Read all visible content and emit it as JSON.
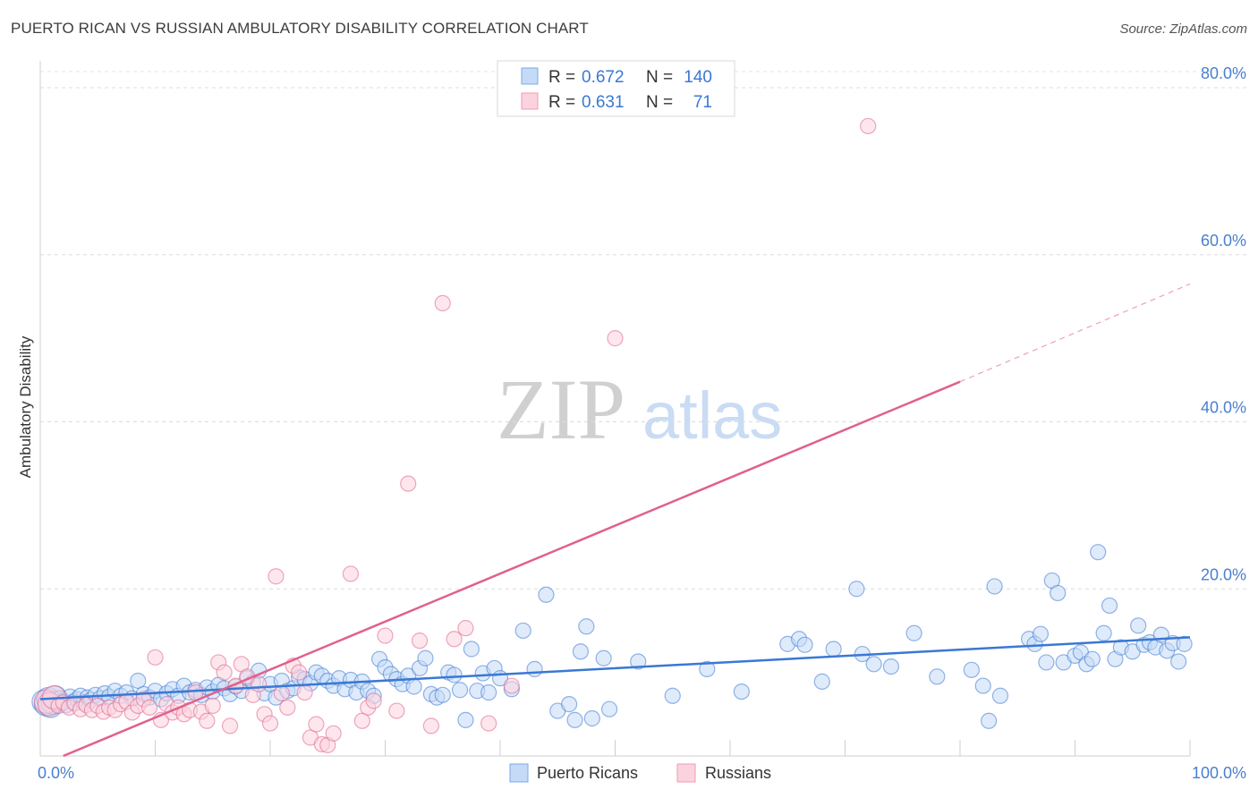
{
  "title": "PUERTO RICAN VS RUSSIAN AMBULATORY DISABILITY CORRELATION CHART",
  "source": "Source: ZipAtlas.com",
  "watermark": {
    "zip": "ZIP",
    "atlas": "atlas"
  },
  "legend": {
    "rows": [
      {
        "r_label": "R =",
        "r_value": "0.672",
        "n_label": "N =",
        "n_value": "140",
        "color": "#7aaae8",
        "fill": "#c5daf6"
      },
      {
        "r_label": "R =",
        "r_value": "0.631",
        "n_label": "N =",
        "n_value": "71",
        "color": "#f09ab5",
        "fill": "#fbd3df"
      }
    ]
  },
  "bottom_legend": [
    {
      "label": "Puerto Ricans",
      "color": "#7aaae8",
      "fill": "#c5daf6"
    },
    {
      "label": "Russians",
      "color": "#f09ab5",
      "fill": "#fbd3df"
    }
  ],
  "chart_data": {
    "type": "scatter",
    "xlabel": "",
    "ylabel": "Ambulatory Disability",
    "xlim": [
      0,
      100
    ],
    "ylim": [
      0,
      80
    ],
    "x_tick_labels": [
      {
        "value": 0,
        "label": "0.0%"
      },
      {
        "value": 100,
        "label": "100.0%"
      }
    ],
    "y_ticks": [
      {
        "value": 20,
        "label": "20.0%"
      },
      {
        "value": 40,
        "label": "40.0%"
      },
      {
        "value": 60,
        "label": "60.0%"
      },
      {
        "value": 80,
        "label": "80.0%"
      }
    ],
    "grid": "horizontal dashed",
    "legend_position": "top-center",
    "series": [
      {
        "name": "Puerto Ricans",
        "color": "#3a78d4",
        "fill": "#c5daf6",
        "trend": {
          "x": [
            0,
            100
          ],
          "y": [
            6.8,
            14.2
          ],
          "dash_from": null
        },
        "points": [
          [
            0.3,
            6.5
          ],
          [
            0.5,
            6.2
          ],
          [
            0.7,
            6.8
          ],
          [
            0.9,
            6.0
          ],
          [
            1.1,
            6.4
          ],
          [
            1.3,
            7.0
          ],
          [
            1.5,
            6.3
          ],
          [
            1.7,
            6.9
          ],
          [
            2.0,
            6.6
          ],
          [
            2.3,
            6.1
          ],
          [
            2.6,
            7.1
          ],
          [
            2.9,
            6.5
          ],
          [
            3.2,
            6.8
          ],
          [
            3.5,
            7.2
          ],
          [
            3.8,
            6.4
          ],
          [
            4.1,
            7.0
          ],
          [
            4.4,
            6.7
          ],
          [
            4.8,
            7.3
          ],
          [
            5.2,
            6.9
          ],
          [
            5.6,
            7.5
          ],
          [
            6.0,
            7.1
          ],
          [
            6.5,
            7.8
          ],
          [
            7.0,
            7.2
          ],
          [
            7.5,
            7.6
          ],
          [
            8.0,
            6.9
          ],
          [
            8.5,
            9.0
          ],
          [
            9.0,
            7.4
          ],
          [
            9.5,
            7.0
          ],
          [
            10.0,
            7.8
          ],
          [
            10.5,
            6.8
          ],
          [
            11.0,
            7.5
          ],
          [
            11.5,
            8.0
          ],
          [
            12.0,
            7.2
          ],
          [
            12.5,
            8.4
          ],
          [
            13.0,
            7.6
          ],
          [
            13.5,
            7.9
          ],
          [
            14.0,
            7.3
          ],
          [
            14.5,
            8.2
          ],
          [
            15.0,
            7.7
          ],
          [
            15.5,
            8.5
          ],
          [
            16.0,
            8.1
          ],
          [
            16.5,
            7.4
          ],
          [
            17.0,
            8.3
          ],
          [
            17.5,
            7.8
          ],
          [
            18.0,
            9.3
          ],
          [
            18.5,
            8.8
          ],
          [
            19.0,
            10.2
          ],
          [
            19.5,
            7.5
          ],
          [
            20.0,
            8.6
          ],
          [
            20.5,
            7.0
          ],
          [
            21.0,
            9.0
          ],
          [
            21.5,
            7.8
          ],
          [
            22.0,
            8.1
          ],
          [
            22.5,
            9.4
          ],
          [
            23.0,
            9.2
          ],
          [
            23.5,
            8.7
          ],
          [
            24.0,
            10.0
          ],
          [
            24.5,
            9.6
          ],
          [
            25.0,
            9.0
          ],
          [
            25.5,
            8.4
          ],
          [
            26.0,
            9.3
          ],
          [
            26.5,
            8.0
          ],
          [
            27.0,
            9.1
          ],
          [
            27.5,
            7.6
          ],
          [
            28.0,
            8.9
          ],
          [
            28.5,
            7.8
          ],
          [
            29.0,
            7.2
          ],
          [
            29.5,
            11.6
          ],
          [
            30.0,
            10.6
          ],
          [
            30.5,
            9.8
          ],
          [
            31.0,
            9.2
          ],
          [
            31.5,
            8.6
          ],
          [
            32.0,
            9.6
          ],
          [
            32.5,
            8.3
          ],
          [
            33.0,
            10.5
          ],
          [
            33.5,
            11.7
          ],
          [
            34.0,
            7.4
          ],
          [
            34.5,
            7.0
          ],
          [
            35.0,
            7.3
          ],
          [
            35.5,
            10.0
          ],
          [
            36.0,
            9.7
          ],
          [
            36.5,
            7.9
          ],
          [
            37.0,
            4.3
          ],
          [
            37.5,
            12.8
          ],
          [
            38.0,
            7.8
          ],
          [
            38.5,
            9.9
          ],
          [
            39.0,
            7.6
          ],
          [
            39.5,
            10.5
          ],
          [
            40.0,
            9.3
          ],
          [
            41.0,
            8.0
          ],
          [
            42.0,
            15.0
          ],
          [
            43.0,
            10.4
          ],
          [
            44.0,
            19.3
          ],
          [
            45.0,
            5.4
          ],
          [
            46.0,
            6.2
          ],
          [
            46.5,
            4.3
          ],
          [
            47.0,
            12.5
          ],
          [
            47.5,
            15.5
          ],
          [
            48.0,
            4.5
          ],
          [
            49.0,
            11.7
          ],
          [
            49.5,
            5.6
          ],
          [
            52.0,
            11.3
          ],
          [
            55.0,
            7.2
          ],
          [
            58.0,
            10.4
          ],
          [
            61.0,
            7.7
          ],
          [
            65.0,
            13.4
          ],
          [
            66.0,
            14.0
          ],
          [
            66.5,
            13.3
          ],
          [
            68.0,
            8.9
          ],
          [
            69.0,
            12.8
          ],
          [
            71.0,
            20.0
          ],
          [
            71.5,
            12.2
          ],
          [
            72.5,
            11.0
          ],
          [
            74.0,
            10.7
          ],
          [
            76.0,
            14.7
          ],
          [
            78.0,
            9.5
          ],
          [
            81.0,
            10.3
          ],
          [
            82.0,
            8.4
          ],
          [
            82.5,
            4.2
          ],
          [
            83.0,
            20.3
          ],
          [
            83.5,
            7.2
          ],
          [
            86.0,
            14.0
          ],
          [
            86.5,
            13.4
          ],
          [
            87.0,
            14.6
          ],
          [
            87.5,
            11.2
          ],
          [
            88.0,
            21.0
          ],
          [
            88.5,
            19.5
          ],
          [
            89.0,
            11.2
          ],
          [
            90.0,
            12.0
          ],
          [
            90.5,
            12.4
          ],
          [
            91.0,
            11.0
          ],
          [
            91.5,
            11.6
          ],
          [
            92.0,
            24.4
          ],
          [
            92.5,
            14.7
          ],
          [
            93.0,
            18.0
          ],
          [
            93.5,
            11.6
          ],
          [
            94.0,
            13.0
          ],
          [
            95.0,
            12.5
          ],
          [
            95.5,
            15.6
          ],
          [
            96.0,
            13.3
          ],
          [
            96.5,
            13.6
          ],
          [
            97.0,
            13.0
          ],
          [
            97.5,
            14.5
          ],
          [
            98.0,
            12.6
          ],
          [
            98.5,
            13.5
          ],
          [
            99.0,
            11.3
          ],
          [
            99.5,
            13.4
          ]
        ]
      },
      {
        "name": "Russians",
        "color": "#e0608d",
        "fill": "#fbd3df",
        "trend": {
          "x": [
            2,
            80,
            100
          ],
          "y": [
            0,
            44.8,
            56.5
          ],
          "dash_from": 80
        },
        "points": [
          [
            0.5,
            6.5
          ],
          [
            0.8,
            6.2
          ],
          [
            1.2,
            7.0
          ],
          [
            1.6,
            6.0
          ],
          [
            2.0,
            6.4
          ],
          [
            2.5,
            5.8
          ],
          [
            3.0,
            6.3
          ],
          [
            3.5,
            5.6
          ],
          [
            4.0,
            6.1
          ],
          [
            4.5,
            5.5
          ],
          [
            5.0,
            6.0
          ],
          [
            5.5,
            5.3
          ],
          [
            6.0,
            5.8
          ],
          [
            6.5,
            5.5
          ],
          [
            7.0,
            6.2
          ],
          [
            7.5,
            6.5
          ],
          [
            8.0,
            5.2
          ],
          [
            8.5,
            6.0
          ],
          [
            9.0,
            6.8
          ],
          [
            9.5,
            5.8
          ],
          [
            10.0,
            11.8
          ],
          [
            10.5,
            4.3
          ],
          [
            11.0,
            6.2
          ],
          [
            11.5,
            5.2
          ],
          [
            12.0,
            5.8
          ],
          [
            12.5,
            5.0
          ],
          [
            13.0,
            5.5
          ],
          [
            13.5,
            7.6
          ],
          [
            14.0,
            5.3
          ],
          [
            14.5,
            4.2
          ],
          [
            15.0,
            6.0
          ],
          [
            15.5,
            11.2
          ],
          [
            16.0,
            10.0
          ],
          [
            16.5,
            3.6
          ],
          [
            17.0,
            8.4
          ],
          [
            17.5,
            11.0
          ],
          [
            18.0,
            9.5
          ],
          [
            18.5,
            7.3
          ],
          [
            19.0,
            8.6
          ],
          [
            19.5,
            5.0
          ],
          [
            20.0,
            3.9
          ],
          [
            20.5,
            21.5
          ],
          [
            21.0,
            7.5
          ],
          [
            21.5,
            5.8
          ],
          [
            22.0,
            10.8
          ],
          [
            22.5,
            10.0
          ],
          [
            23.0,
            7.6
          ],
          [
            23.5,
            2.2
          ],
          [
            24.0,
            3.8
          ],
          [
            24.5,
            1.4
          ],
          [
            25.0,
            1.3
          ],
          [
            25.5,
            2.7
          ],
          [
            27.0,
            21.8
          ],
          [
            28.0,
            4.2
          ],
          [
            28.5,
            5.8
          ],
          [
            29.0,
            6.6
          ],
          [
            30.0,
            14.4
          ],
          [
            31.0,
            5.4
          ],
          [
            32.0,
            32.6
          ],
          [
            33.0,
            13.8
          ],
          [
            34.0,
            3.6
          ],
          [
            35.0,
            54.2
          ],
          [
            36.0,
            14.0
          ],
          [
            37.0,
            15.3
          ],
          [
            39.0,
            3.9
          ],
          [
            41.0,
            8.4
          ],
          [
            50.0,
            50.0
          ],
          [
            72.0,
            75.4
          ]
        ]
      }
    ]
  }
}
